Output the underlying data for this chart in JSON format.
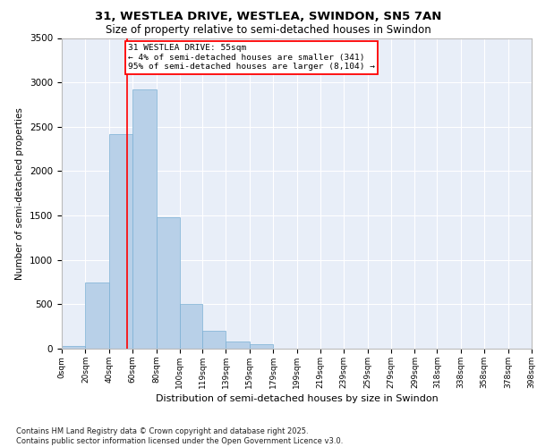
{
  "title_line1": "31, WESTLEA DRIVE, WESTLEA, SWINDON, SN5 7AN",
  "title_line2": "Size of property relative to semi-detached houses in Swindon",
  "xlabel": "Distribution of semi-detached houses by size in Swindon",
  "ylabel": "Number of semi-detached properties",
  "footer": "Contains HM Land Registry data © Crown copyright and database right 2025.\nContains public sector information licensed under the Open Government Licence v3.0.",
  "bin_labels": [
    "0sqm",
    "20sqm",
    "40sqm",
    "60sqm",
    "80sqm",
    "100sqm",
    "119sqm",
    "139sqm",
    "159sqm",
    "179sqm",
    "199sqm",
    "219sqm",
    "239sqm",
    "259sqm",
    "279sqm",
    "299sqm",
    "318sqm",
    "338sqm",
    "358sqm",
    "378sqm",
    "398sqm"
  ],
  "bar_values": [
    30,
    750,
    2420,
    2920,
    1480,
    500,
    200,
    80,
    50,
    0,
    0,
    0,
    0,
    0,
    0,
    0,
    0,
    0,
    0,
    0
  ],
  "bar_color": "#b8d0e8",
  "bar_edge_color": "#7aafd4",
  "property_value": 55,
  "property_label": "31 WESTLEA DRIVE: 55sqm",
  "annotation_line2": "← 4% of semi-detached houses are smaller (341)",
  "annotation_line3": "95% of semi-detached houses are larger (8,104) →",
  "vline_color": "red",
  "annotation_box_color": "white",
  "annotation_box_edge": "red",
  "yticks": [
    0,
    500,
    1000,
    1500,
    2000,
    2500,
    3000,
    3500
  ],
  "ylim": [
    0,
    3500
  ],
  "background_color": "#e8eef8"
}
